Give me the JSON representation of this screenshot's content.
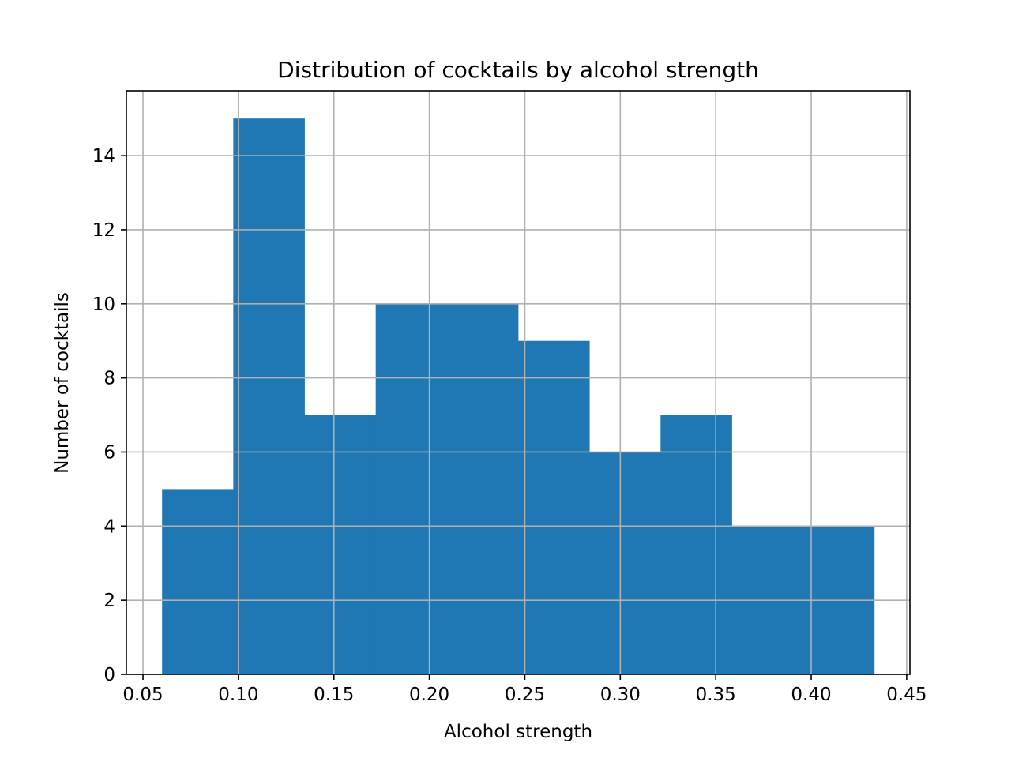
{
  "chart_data": {
    "type": "bar",
    "title": "Distribution of cocktails by alcohol strength",
    "xlabel": "Alcohol strength",
    "ylabel": "Number of cocktails",
    "bins": [
      {
        "start": 0.06,
        "end": 0.0973,
        "count": 5
      },
      {
        "start": 0.0973,
        "end": 0.1346,
        "count": 15
      },
      {
        "start": 0.1346,
        "end": 0.1719,
        "count": 7
      },
      {
        "start": 0.1719,
        "end": 0.2092,
        "count": 10
      },
      {
        "start": 0.2092,
        "end": 0.2465,
        "count": 10
      },
      {
        "start": 0.2465,
        "end": 0.2838,
        "count": 9
      },
      {
        "start": 0.2838,
        "end": 0.3211,
        "count": 6
      },
      {
        "start": 0.3211,
        "end": 0.3584,
        "count": 7
      },
      {
        "start": 0.3584,
        "end": 0.3957,
        "count": 4
      },
      {
        "start": 0.3957,
        "end": 0.433,
        "count": 4
      }
    ],
    "xlim": [
      0.0413,
      0.4517
    ],
    "ylim": [
      0,
      15.75
    ],
    "xticks": [
      0.05,
      0.1,
      0.15,
      0.2,
      0.25,
      0.3,
      0.35,
      0.4,
      0.45
    ],
    "xtick_labels": [
      "0.05",
      "0.10",
      "0.15",
      "0.20",
      "0.25",
      "0.30",
      "0.35",
      "0.40",
      "0.45"
    ],
    "yticks": [
      0,
      2,
      4,
      6,
      8,
      10,
      12,
      14
    ],
    "ytick_labels": [
      "0",
      "2",
      "4",
      "6",
      "8",
      "10",
      "12",
      "14"
    ],
    "grid": true,
    "bar_color": "#1f77b4",
    "grid_color": "#b0b0b0"
  }
}
